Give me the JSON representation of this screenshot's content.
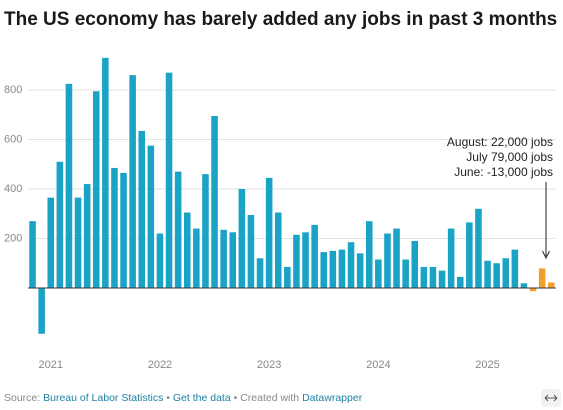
{
  "chart_data": {
    "type": "bar",
    "title": "The US economy has barely added any jobs in past 3 months",
    "categories": [
      null,
      null,
      "2021",
      null,
      null,
      null,
      null,
      null,
      null,
      null,
      null,
      null,
      null,
      null,
      "2022",
      null,
      null,
      null,
      null,
      null,
      null,
      null,
      null,
      null,
      null,
      null,
      "2023",
      null,
      null,
      null,
      null,
      null,
      null,
      null,
      null,
      null,
      null,
      null,
      "2024",
      null,
      null,
      null,
      null,
      null,
      null,
      null,
      null,
      null,
      null,
      null,
      "2025",
      null,
      null,
      null,
      null,
      null,
      null,
      null
    ],
    "values": [
      270,
      -185,
      365,
      510,
      825,
      365,
      420,
      795,
      930,
      485,
      465,
      860,
      635,
      575,
      220,
      870,
      470,
      305,
      240,
      460,
      695,
      235,
      225,
      400,
      295,
      120,
      445,
      305,
      85,
      215,
      225,
      255,
      145,
      150,
      155,
      185,
      140,
      270,
      115,
      220,
      240,
      115,
      190,
      85,
      85,
      70,
      240,
      45,
      265,
      320,
      110,
      100,
      120,
      155,
      19,
      -13,
      79,
      22
    ],
    "colors": [
      "#1ba3c6",
      "#1ba3c6",
      "#1ba3c6",
      "#1ba3c6",
      "#1ba3c6",
      "#1ba3c6",
      "#1ba3c6",
      "#1ba3c6",
      "#1ba3c6",
      "#1ba3c6",
      "#1ba3c6",
      "#1ba3c6",
      "#1ba3c6",
      "#1ba3c6",
      "#1ba3c6",
      "#1ba3c6",
      "#1ba3c6",
      "#1ba3c6",
      "#1ba3c6",
      "#1ba3c6",
      "#1ba3c6",
      "#1ba3c6",
      "#1ba3c6",
      "#1ba3c6",
      "#1ba3c6",
      "#1ba3c6",
      "#1ba3c6",
      "#1ba3c6",
      "#1ba3c6",
      "#1ba3c6",
      "#1ba3c6",
      "#1ba3c6",
      "#1ba3c6",
      "#1ba3c6",
      "#1ba3c6",
      "#1ba3c6",
      "#1ba3c6",
      "#1ba3c6",
      "#1ba3c6",
      "#1ba3c6",
      "#1ba3c6",
      "#1ba3c6",
      "#1ba3c6",
      "#1ba3c6",
      "#1ba3c6",
      "#1ba3c6",
      "#1ba3c6",
      "#1ba3c6",
      "#1ba3c6",
      "#1ba3c6",
      "#1ba3c6",
      "#1ba3c6",
      "#1ba3c6",
      "#1ba3c6",
      "#1ba3c6",
      "#f0a030",
      "#f0a030",
      "#f0a030"
    ],
    "ylim": [
      -230,
      940
    ],
    "yticks": [
      200,
      400,
      600,
      800
    ],
    "grid": true,
    "annotations": [
      "August: 22,000 jobs",
      "July 79,000 jobs",
      "June: -13,000 jobs"
    ],
    "source_label": "Source:",
    "source": "Bureau of Labor Statistics",
    "separator": "•",
    "get_data": "Get the data",
    "created": "Created with",
    "tool": "Datawrapper"
  }
}
